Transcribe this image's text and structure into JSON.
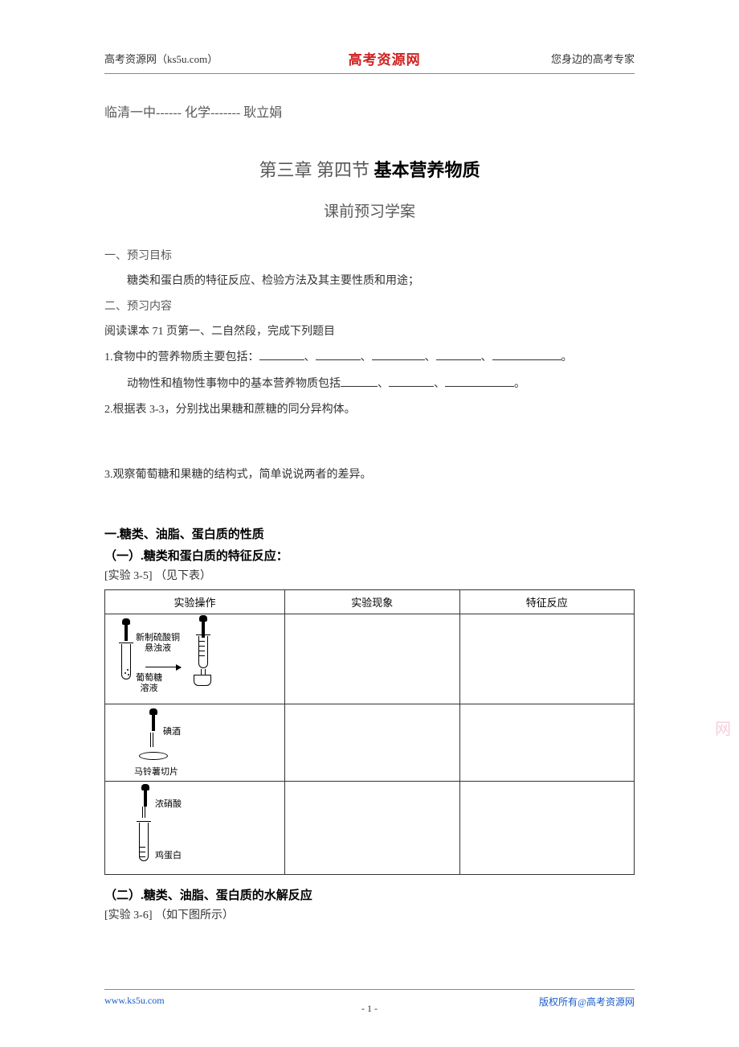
{
  "header": {
    "left": "高考资源网（ks5u.com）",
    "center": "高考资源网",
    "right": "您身边的高考专家"
  },
  "author_line": "临清一中------ 化学------- 耿立娟",
  "title": {
    "prefix": "第三章 第四节 ",
    "main": "基本营养物质"
  },
  "subtitle": "课前预习学案",
  "sec1_head": "一、预习目标",
  "sec1_body": "糖类和蛋白质的特征反应、检验方法及其主要性质和用途；",
  "sec2_head": "二、预习内容",
  "sec2_line1": "阅读课本 71 页第一、二自然段，完成下列题目",
  "q1_prefix": "1.食物中的营养物质主要包括：",
  "q1_line2_prefix": "动物性和植物性事物中的基本营养物质包括",
  "q2": "2.根据表 3-3，分别找出果糖和蔗糖的同分异构体。",
  "q3": "3.观察葡萄糖和果糖的结构式，简单说说两者的差异。",
  "h1": "一.糖类、油脂、蛋白质的性质",
  "h1_1": "（一）.糖类和蛋白质的特征反应：",
  "exp35": "[实验 3-5] （见下表）",
  "table": {
    "cols": [
      "实验操作",
      "实验现象",
      "特征反应"
    ],
    "row1": {
      "label_reagent": "新制硫酸铜\n悬浊液",
      "label_glucose": "葡萄糖\n溶液"
    },
    "row2": {
      "label_iodine": "碘酒",
      "label_potato": "马铃薯切片"
    },
    "row3": {
      "label_acid": "浓硝酸",
      "label_egg": "鸡蛋白"
    }
  },
  "h1_2": "（二）.糖类、油脂、蛋白质的水解反应",
  "exp36": "[实验 3-6] （如下图所示）",
  "watermark": "网",
  "footer": {
    "left": "www.ks5u.com",
    "center": "- 1 -",
    "right": "版权所有@高考资源网"
  },
  "colors": {
    "brand_red": "#d02020",
    "link_blue": "#1a5cc8",
    "text_gray": "#595959",
    "watermark_pink": "#f5b8c8"
  }
}
